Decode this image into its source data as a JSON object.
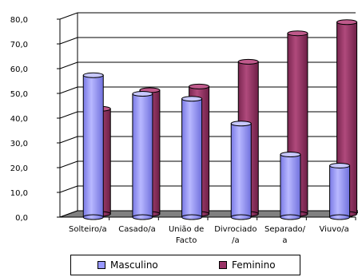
{
  "chart_data": {
    "type": "bar",
    "categories": [
      [
        "Solteiro/a"
      ],
      [
        "Casado/a"
      ],
      [
        "União de",
        "Facto"
      ],
      [
        "Divrociado",
        "/a"
      ],
      [
        "Separado/",
        "a"
      ],
      [
        "Viuvo/a"
      ]
    ],
    "series": [
      {
        "name": "Masculino",
        "values": [
          57.0,
          49.5,
          47.5,
          37.5,
          25.0,
          20.5
        ]
      },
      {
        "name": "Feminino",
        "values": [
          42.5,
          50.0,
          51.5,
          61.5,
          73.0,
          77.5
        ]
      }
    ],
    "yticks": [
      "0,0",
      "10,0",
      "20,0",
      "30,0",
      "40,0",
      "50,0",
      "60,0",
      "70,0",
      "80,0"
    ],
    "ylim": [
      0,
      80
    ],
    "grid": true,
    "legend_position": "bottom",
    "colors": {
      "Masculino": "#9999ff",
      "Feminino": "#993366"
    }
  }
}
